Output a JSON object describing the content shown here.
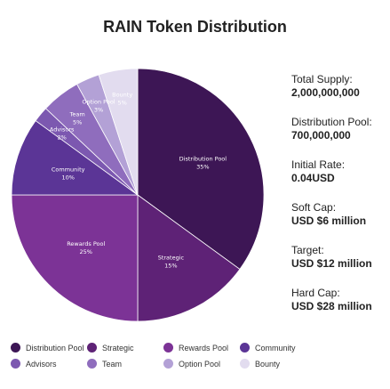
{
  "chart_data": {
    "type": "pie",
    "title": "RAIN Token Distribution",
    "unit": "%",
    "slices": [
      {
        "label": "Distribution Pool",
        "value": 35,
        "color": "#3d1655"
      },
      {
        "label": "Strategic",
        "value": 15,
        "color": "#5e2276"
      },
      {
        "label": "Rewards Pool",
        "value": 25,
        "color": "#7c3396"
      },
      {
        "label": "Community",
        "value": 10,
        "color": "#5b3596"
      },
      {
        "label": "Advisors",
        "value": 2,
        "color": "#7c58b0"
      },
      {
        "label": "Team",
        "value": 5,
        "color": "#8f6dbd"
      },
      {
        "label": "Option Pool",
        "value": 3,
        "color": "#b3a1d6"
      },
      {
        "label": "Bounty",
        "value": 5,
        "color": "#e2dcef"
      }
    ],
    "legend_position": "bottom"
  },
  "info": [
    {
      "label": "Total Supply:",
      "value": "2,000,000,000"
    },
    {
      "label": "Distribution Pool:",
      "value": "700,000,000"
    },
    {
      "label": "Initial Rate:",
      "value": "0.04USD"
    },
    {
      "label": "Soft Cap:",
      "value": "USD $6 million"
    },
    {
      "label": "Target:",
      "value": "USD $12 million"
    },
    {
      "label": "Hard Cap:",
      "value": "USD $28 million"
    }
  ]
}
